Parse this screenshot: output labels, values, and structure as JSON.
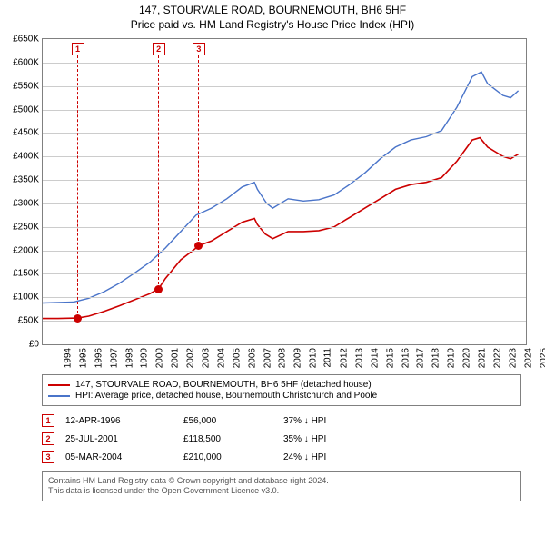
{
  "title_line1": "147, STOURVALE ROAD, BOURNEMOUTH, BH6 5HF",
  "title_line2": "Price paid vs. HM Land Registry's House Price Index (HPI)",
  "chart": {
    "type": "line",
    "background_color": "#ffffff",
    "border_color": "#808080",
    "grid_color": "#cccccc",
    "ylim": [
      0,
      650000
    ],
    "ytick_step": 50000,
    "y_ticks": [
      "£0",
      "£50K",
      "£100K",
      "£150K",
      "£200K",
      "£250K",
      "£300K",
      "£350K",
      "£400K",
      "£450K",
      "£500K",
      "£550K",
      "£600K",
      "£650K"
    ],
    "y_tick_values": [
      0,
      50000,
      100000,
      150000,
      200000,
      250000,
      300000,
      350000,
      400000,
      450000,
      500000,
      550000,
      600000,
      650000
    ],
    "xlim": [
      1994,
      2025.5
    ],
    "x_ticks": [
      "1994",
      "1995",
      "1996",
      "1997",
      "1998",
      "1999",
      "2000",
      "2001",
      "2002",
      "2003",
      "2004",
      "2005",
      "2006",
      "2007",
      "2008",
      "2009",
      "2010",
      "2011",
      "2012",
      "2013",
      "2014",
      "2015",
      "2016",
      "2017",
      "2018",
      "2019",
      "2020",
      "2021",
      "2022",
      "2023",
      "2024",
      "2025"
    ],
    "x_tick_values": [
      1994,
      1995,
      1996,
      1997,
      1998,
      1999,
      2000,
      2001,
      2002,
      2003,
      2004,
      2005,
      2006,
      2007,
      2008,
      2009,
      2010,
      2011,
      2012,
      2013,
      2014,
      2015,
      2016,
      2017,
      2018,
      2019,
      2020,
      2021,
      2022,
      2023,
      2024,
      2025
    ],
    "axis_fontsize": 10,
    "title_fontsize": 12,
    "series": [
      {
        "name": "price_paid",
        "label": "147, STOURVALE ROAD, BOURNEMOUTH, BH6 5HF (detached house)",
        "color": "#cc0000",
        "line_width": 1.6,
        "points": [
          [
            1994,
            55000
          ],
          [
            1995,
            55000
          ],
          [
            1996.28,
            56000
          ],
          [
            1997,
            60000
          ],
          [
            1998,
            70000
          ],
          [
            1999,
            82000
          ],
          [
            2000,
            95000
          ],
          [
            2001,
            108000
          ],
          [
            2001.56,
            118500
          ],
          [
            2002,
            140000
          ],
          [
            2003,
            180000
          ],
          [
            2004,
            205000
          ],
          [
            2004.18,
            210000
          ],
          [
            2005,
            220000
          ],
          [
            2006,
            240000
          ],
          [
            2007,
            260000
          ],
          [
            2007.8,
            268000
          ],
          [
            2008,
            255000
          ],
          [
            2008.5,
            235000
          ],
          [
            2009,
            225000
          ],
          [
            2010,
            240000
          ],
          [
            2011,
            240000
          ],
          [
            2012,
            242000
          ],
          [
            2013,
            250000
          ],
          [
            2014,
            270000
          ],
          [
            2015,
            290000
          ],
          [
            2016,
            310000
          ],
          [
            2017,
            330000
          ],
          [
            2018,
            340000
          ],
          [
            2019,
            345000
          ],
          [
            2020,
            355000
          ],
          [
            2021,
            390000
          ],
          [
            2022,
            435000
          ],
          [
            2022.5,
            440000
          ],
          [
            2023,
            420000
          ],
          [
            2024,
            400000
          ],
          [
            2024.5,
            395000
          ],
          [
            2025,
            405000
          ]
        ]
      },
      {
        "name": "hpi",
        "label": "HPI: Average price, detached house, Bournemouth Christchurch and Poole",
        "color": "#4a74c9",
        "line_width": 1.4,
        "points": [
          [
            1994,
            88000
          ],
          [
            1995,
            89000
          ],
          [
            1996,
            90000
          ],
          [
            1997,
            98000
          ],
          [
            1998,
            112000
          ],
          [
            1999,
            130000
          ],
          [
            2000,
            152000
          ],
          [
            2001,
            175000
          ],
          [
            2002,
            205000
          ],
          [
            2003,
            240000
          ],
          [
            2004,
            275000
          ],
          [
            2005,
            290000
          ],
          [
            2006,
            310000
          ],
          [
            2007,
            335000
          ],
          [
            2007.8,
            345000
          ],
          [
            2008,
            330000
          ],
          [
            2008.6,
            300000
          ],
          [
            2009,
            290000
          ],
          [
            2010,
            310000
          ],
          [
            2011,
            305000
          ],
          [
            2012,
            308000
          ],
          [
            2013,
            318000
          ],
          [
            2014,
            340000
          ],
          [
            2015,
            365000
          ],
          [
            2016,
            395000
          ],
          [
            2017,
            420000
          ],
          [
            2018,
            435000
          ],
          [
            2019,
            442000
          ],
          [
            2020,
            455000
          ],
          [
            2021,
            505000
          ],
          [
            2022,
            570000
          ],
          [
            2022.6,
            580000
          ],
          [
            2023,
            555000
          ],
          [
            2024,
            530000
          ],
          [
            2024.5,
            525000
          ],
          [
            2025,
            540000
          ]
        ]
      }
    ],
    "events": [
      {
        "n": "1",
        "x": 1996.28,
        "y_to": 56000
      },
      {
        "n": "2",
        "x": 2001.56,
        "y_to": 118500
      },
      {
        "n": "3",
        "x": 2004.18,
        "y_to": 210000
      }
    ],
    "event_marker_color": "#cc0000",
    "event_line_dash": "3,3"
  },
  "legend": {
    "items": [
      {
        "color": "#cc0000",
        "label_path": "chart.series.0.label"
      },
      {
        "color": "#4a74c9",
        "label_path": "chart.series.1.label"
      }
    ]
  },
  "events_table": {
    "rows": [
      {
        "n": "1",
        "date": "12-APR-1996",
        "price": "£56,000",
        "delta": "37% ↓ HPI"
      },
      {
        "n": "2",
        "date": "25-JUL-2001",
        "price": "£118,500",
        "delta": "35% ↓ HPI"
      },
      {
        "n": "3",
        "date": "05-MAR-2004",
        "price": "£210,000",
        "delta": "24% ↓ HPI"
      }
    ]
  },
  "footer_line1": "Contains HM Land Registry data © Crown copyright and database right 2024.",
  "footer_line2": "This data is licensed under the Open Government Licence v3.0."
}
